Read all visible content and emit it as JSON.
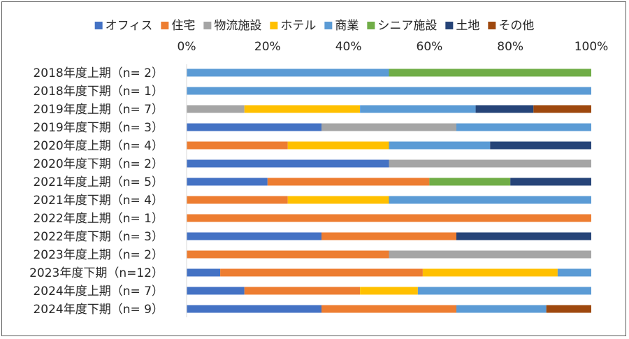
{
  "chart_data": {
    "type": "bar",
    "orientation": "horizontal",
    "stacked": "percent",
    "categories": [
      "2018年度上期（n=  2）",
      "2018年度下期（n=  1）",
      "2019年度上期（n=  7）",
      "2019年度下期（n=  3）",
      "2020年度上期（n=  4）",
      "2020年度下期（n=  2）",
      "2021年度上期（n=  5）",
      "2021年度下期（n=  4）",
      "2022年度上期（n=  1）",
      "2022年度下期（n=  3）",
      "2023年度上期（n=  2）",
      "2023年度下期（n=12）",
      "2024年度上期（n=  7）",
      "2024年度下期（n=  9）"
    ],
    "series": [
      {
        "name": "オフィス",
        "color": "#4472C4",
        "values": [
          0,
          0,
          0,
          33.3,
          0,
          50,
          20,
          0,
          0,
          33.3,
          0,
          8.3,
          14.3,
          33.3
        ]
      },
      {
        "name": "住宅",
        "color": "#ED7D31",
        "values": [
          0,
          0,
          0,
          0,
          25,
          0,
          40,
          25,
          100,
          33.3,
          50,
          50,
          28.6,
          33.3
        ]
      },
      {
        "name": "物流施設",
        "color": "#A5A5A5",
        "values": [
          0,
          0,
          14.3,
          33.3,
          0,
          50,
          0,
          0,
          0,
          0,
          50,
          0,
          0,
          0
        ]
      },
      {
        "name": "ホテル",
        "color": "#FFC000",
        "values": [
          0,
          0,
          28.6,
          0,
          25,
          0,
          0,
          25,
          0,
          0,
          0,
          33.3,
          14.3,
          0
        ]
      },
      {
        "name": "商業",
        "color": "#5B9BD5",
        "values": [
          50,
          100,
          28.6,
          33.3,
          25,
          0,
          0,
          50,
          0,
          0,
          0,
          8.3,
          42.9,
          22.2
        ]
      },
      {
        "name": "シニア施設",
        "color": "#70AD47",
        "values": [
          50,
          0,
          0,
          0,
          0,
          0,
          20,
          0,
          0,
          0,
          0,
          0,
          0,
          0
        ]
      },
      {
        "name": "土地",
        "color": "#264478",
        "values": [
          0,
          0,
          14.3,
          0,
          25,
          0,
          20,
          0,
          0,
          33.3,
          0,
          0,
          0,
          0
        ]
      },
      {
        "name": "その他",
        "color": "#9E480E",
        "values": [
          0,
          0,
          14.3,
          0,
          0,
          0,
          0,
          0,
          0,
          0,
          0,
          0,
          0,
          11.1
        ]
      }
    ],
    "xlim": [
      0,
      100
    ],
    "x_ticks": [
      "0%",
      "20%",
      "40%",
      "60%",
      "80%",
      "100%"
    ],
    "x_tick_position": "top",
    "legend_position": "top",
    "grid": false,
    "title": "",
    "xlabel": "",
    "ylabel": ""
  }
}
